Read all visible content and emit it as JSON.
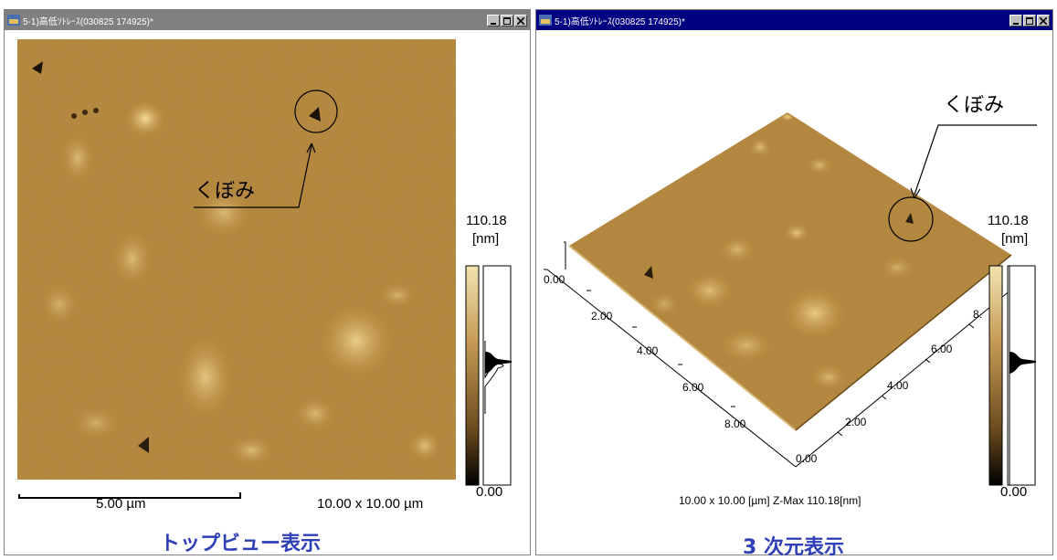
{
  "left_window": {
    "title": "5-1)高低ｿﾄﾚｰｽ(030825 174925)*",
    "annotation": "くぼみ",
    "scale_bar_label": "5.00 µm",
    "scan_size": "10.00 x 10.00 µm",
    "colorbar_max": "110.18",
    "colorbar_unit": "[nm]",
    "colorbar_min": "0.00",
    "caption": "トップビュー表示"
  },
  "right_window": {
    "title": "5-1)高低ｿﾄﾚｰｽ(030825 174925)*",
    "annotation": "くぼみ",
    "axis_left_labels": [
      "0.00",
      "2.00",
      "4.00",
      "6.00",
      "8.00"
    ],
    "axis_right_labels": [
      "0.00",
      "2.00",
      "4.00",
      "6.00",
      "8."
    ],
    "origin_label": "0.00",
    "info_line": "10.00 x 10.00 [µm]  Z-Max 110.18[nm]",
    "colorbar_max": "110.18",
    "colorbar_unit": "[nm]",
    "colorbar_min": "0.00",
    "caption": "3 次元表示"
  },
  "colors": {
    "surface_base": "#b8893f",
    "surface_light": "#e0c27a",
    "caption_blue": "#2f3fb5",
    "active_title": "#000080",
    "inactive_title": "#808080"
  }
}
